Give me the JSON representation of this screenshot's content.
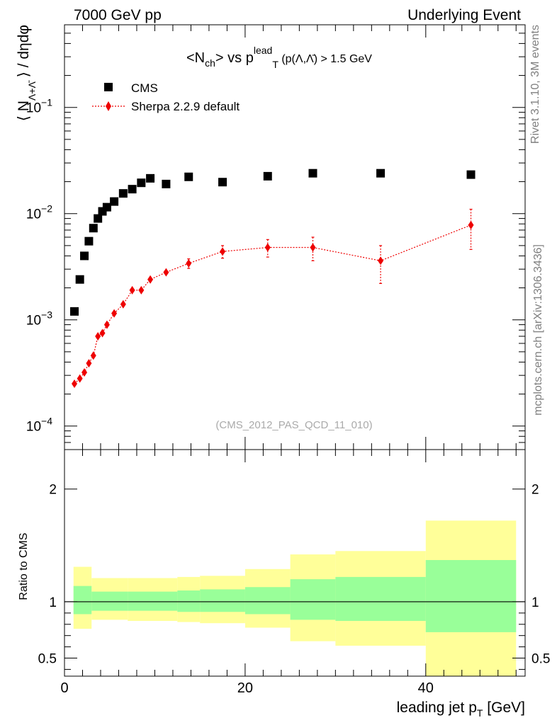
{
  "header": {
    "left": "7000 GeV pp",
    "right": "Underlying Event"
  },
  "side_labels": {
    "rivet": "Rivet 3.1.10,  3M events",
    "site": "mcplots.cern.ch [arXiv:1306.3436]"
  },
  "analysis_tag": "(CMS_2012_PAS_QCD_11_010)",
  "colors": {
    "data": "#000000",
    "mc": "#ee0000",
    "band_inner": "#99ff99",
    "band_outer": "#ffff99"
  },
  "chart_data": [
    {
      "type": "scatter",
      "panel": "main",
      "title": "<N_ch> vs p_T^lead (p_T(Λ,Λ̄) > 1.5 GeV)",
      "xlabel": "leading jet p_T [GeV]",
      "ylabel": "⟨ N_Λ+Λ̄ ⟩ / dηdφ",
      "y_scale": "log",
      "xlim": [
        0,
        51
      ],
      "ylim": [
        6e-05,
        0.6
      ],
      "y_tick_labels": [
        "10^-4",
        "10^-3",
        "10^-2",
        "10^-1"
      ],
      "legend_position": "top-left",
      "series": [
        {
          "name": "CMS",
          "marker": "square",
          "color": "#000000",
          "x": [
            1.1,
            1.7,
            2.2,
            2.7,
            3.2,
            3.7,
            4.2,
            4.7,
            5.5,
            6.5,
            7.5,
            8.5,
            9.5,
            11.25,
            13.75,
            17.5,
            22.5,
            27.5,
            35,
            45
          ],
          "y": [
            0.0012,
            0.0024,
            0.004,
            0.0055,
            0.0073,
            0.009,
            0.0105,
            0.0115,
            0.013,
            0.0155,
            0.017,
            0.0195,
            0.0215,
            0.019,
            0.0222,
            0.0198,
            0.0225,
            0.024,
            0.024,
            0.0233
          ]
        },
        {
          "name": "Sherpa 2.2.9 default",
          "marker": "diamond",
          "color": "#ee0000",
          "line": "dotted",
          "x": [
            1.1,
            1.7,
            2.2,
            2.7,
            3.2,
            3.7,
            4.2,
            4.7,
            5.5,
            6.5,
            7.5,
            8.5,
            9.5,
            11.25,
            13.75,
            17.5,
            22.5,
            27.5,
            35,
            45
          ],
          "y": [
            0.00025,
            0.00028,
            0.00032,
            0.00039,
            0.00046,
            0.0007,
            0.00075,
            0.0009,
            0.00115,
            0.0014,
            0.0019,
            0.0019,
            0.0024,
            0.0028,
            0.0034,
            0.0044,
            0.0048,
            0.0048,
            0.0036,
            0.0078
          ],
          "y_err_low": [
            1e-05,
            1e-05,
            1e-05,
            2e-05,
            2e-05,
            3e-05,
            3e-05,
            4e-05,
            5e-05,
            7e-05,
            0.0001,
            0.0001,
            0.00015,
            0.0002,
            0.00035,
            0.0006,
            0.0009,
            0.0012,
            0.0014,
            0.0032
          ],
          "y_err_high": [
            1e-05,
            1e-05,
            1e-05,
            2e-05,
            2e-05,
            3e-05,
            3e-05,
            4e-05,
            5e-05,
            7e-05,
            0.0001,
            0.0001,
            0.00015,
            0.0002,
            0.00035,
            0.0006,
            0.0009,
            0.0012,
            0.0014,
            0.0032
          ]
        }
      ]
    },
    {
      "type": "area",
      "panel": "ratio",
      "xlabel": "leading jet p_T [GeV]",
      "ylabel": "Ratio to CMS",
      "xlim": [
        0,
        51
      ],
      "ylim": [
        0.34,
        2.35
      ],
      "x_tick_labels": [
        "0",
        "20",
        "40"
      ],
      "y_tick_labels": [
        "0.5",
        "1",
        "2"
      ],
      "reference_line": 1,
      "bands": [
        {
          "x_low": 1,
          "x_high": 3,
          "inner": [
            0.89,
            1.14
          ],
          "outer": [
            0.76,
            1.31
          ]
        },
        {
          "x_low": 3,
          "x_high": 7,
          "inner": [
            0.92,
            1.09
          ],
          "outer": [
            0.84,
            1.21
          ]
        },
        {
          "x_low": 7,
          "x_high": 12.5,
          "inner": [
            0.92,
            1.09
          ],
          "outer": [
            0.83,
            1.21
          ]
        },
        {
          "x_low": 12.5,
          "x_high": 15,
          "inner": [
            0.91,
            1.1
          ],
          "outer": [
            0.82,
            1.22
          ]
        },
        {
          "x_low": 15,
          "x_high": 20,
          "inner": [
            0.91,
            1.11
          ],
          "outer": [
            0.81,
            1.23
          ]
        },
        {
          "x_low": 20,
          "x_high": 25,
          "inner": [
            0.89,
            1.13
          ],
          "outer": [
            0.77,
            1.29
          ]
        },
        {
          "x_low": 25,
          "x_high": 30,
          "inner": [
            0.84,
            1.2
          ],
          "outer": [
            0.65,
            1.42
          ]
        },
        {
          "x_low": 30,
          "x_high": 40,
          "inner": [
            0.83,
            1.22
          ],
          "outer": [
            0.61,
            1.45
          ]
        },
        {
          "x_low": 40,
          "x_high": 50,
          "inner": [
            0.73,
            1.37
          ],
          "outer": [
            0.34,
            1.72
          ]
        }
      ]
    }
  ]
}
